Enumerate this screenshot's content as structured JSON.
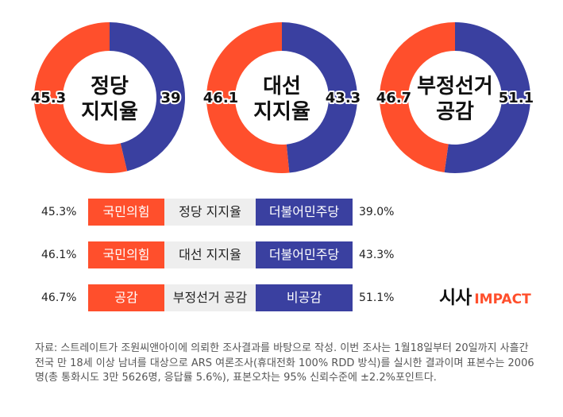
{
  "colors": {
    "red": "#FF4F2C",
    "blue": "#3A40A0",
    "logo_accent": "#FF4F2C"
  },
  "chart_data": [
    {
      "type": "pie",
      "title": "정당 지지율",
      "title_lines": [
        "정당",
        "지지율"
      ],
      "slices": [
        {
          "name": "국민의힘",
          "value": 45.3,
          "label": "45.3",
          "color": "#FF4F2C"
        },
        {
          "name": "더불어민주당",
          "value": 39,
          "label": "39",
          "color": "#3A40A0"
        }
      ]
    },
    {
      "type": "pie",
      "title": "대선 지지율",
      "title_lines": [
        "대선",
        "지지율"
      ],
      "slices": [
        {
          "name": "국민의힘",
          "value": 46.1,
          "label": "46.1",
          "color": "#FF4F2C"
        },
        {
          "name": "더불어민주당",
          "value": 43.3,
          "label": "43.3",
          "color": "#3A40A0"
        }
      ]
    },
    {
      "type": "pie",
      "title": "부정선거 공감",
      "title_lines": [
        "부정선거",
        "공감"
      ],
      "slices": [
        {
          "name": "공감",
          "value": 46.7,
          "label": "46.7",
          "color": "#FF4F2C"
        },
        {
          "name": "비공감",
          "value": 51.1,
          "label": "51.1",
          "color": "#3A40A0"
        }
      ]
    }
  ],
  "legend_rows": [
    {
      "left_pct": "45.3%",
      "left_label": "국민의힘",
      "middle": "정당 지지율",
      "right_label": "더불어민주당",
      "right_pct": "39.0%"
    },
    {
      "left_pct": "46.1%",
      "left_label": "국민의힘",
      "middle": "대선 지지율",
      "right_label": "더불어민주당",
      "right_pct": "43.3%"
    },
    {
      "left_pct": "46.7%",
      "left_label": "공감",
      "middle": "부정선거 공감",
      "right_label": "비공감",
      "right_pct": "51.1%"
    }
  ],
  "logo": {
    "korean": "시사",
    "english": "IMPACT"
  },
  "source": "자료: 스트레이트가 조원씨앤아이에 의뢰한 조사결과를 바탕으로 작성. 이번 조사는 1월18일부터 20일까지 사흘간 전국 만 18세 이상 남녀를 대상으로 ARS 여론조사(휴대전화 100% RDD 방식)를 실시한 결과이며 표본수는 2006명(총 통화시도 3만 5626명, 응답률 5.6%), 표본오차는 95% 신뢰수준에 ±2.2%포인트다."
}
